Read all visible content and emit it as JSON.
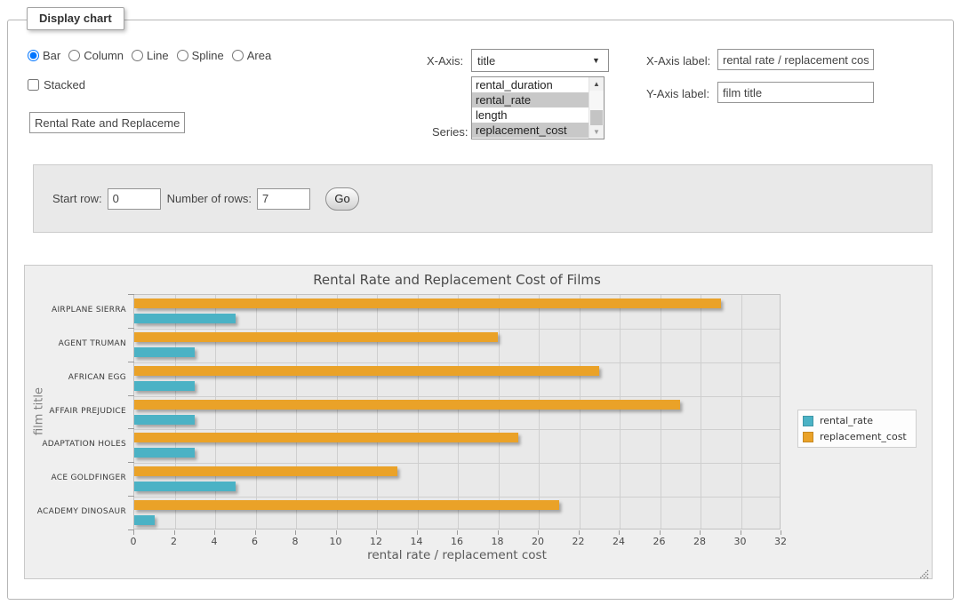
{
  "panel": {
    "legend_title": "Display chart"
  },
  "controls": {
    "chart_types": [
      {
        "label": "Bar",
        "checked": true
      },
      {
        "label": "Column",
        "checked": false
      },
      {
        "label": "Line",
        "checked": false
      },
      {
        "label": "Spline",
        "checked": false
      },
      {
        "label": "Area",
        "checked": false
      }
    ],
    "stacked": {
      "label": "Stacked",
      "checked": false
    },
    "chart_title_input": {
      "value": "Rental Rate and Replacemer"
    },
    "x_axis": {
      "label": "X-Axis:",
      "selected": "title"
    },
    "series_picker": {
      "label": "Series:",
      "options": [
        {
          "label": "rental_duration",
          "selected": false
        },
        {
          "label": "rental_rate",
          "selected": true
        },
        {
          "label": "length",
          "selected": false
        },
        {
          "label": "replacement_cost",
          "selected": true
        }
      ]
    },
    "x_axis_label_field": {
      "label": "X-Axis label:",
      "value": "rental rate / replacement cost"
    },
    "y_axis_label_field": {
      "label": "Y-Axis label:",
      "value": "film title"
    }
  },
  "pagination": {
    "start_row_label": "Start row:",
    "start_row_value": "0",
    "num_rows_label": "Number of rows:",
    "num_rows_value": "7",
    "go_label": "Go"
  },
  "chart_data": {
    "type": "bar",
    "orientation": "horizontal",
    "title": "Rental Rate and Replacement Cost of Films",
    "xlabel": "rental rate / replacement cost",
    "ylabel": "film title",
    "categories": [
      "AIRPLANE SIERRA",
      "AGENT TRUMAN",
      "AFRICAN EGG",
      "AFFAIR PREJUDICE",
      "ADAPTATION HOLES",
      "ACE GOLDFINGER",
      "ACADEMY DINOSAUR"
    ],
    "series": [
      {
        "name": "rental_rate",
        "color": "#4bb2c5",
        "values": [
          4.99,
          2.99,
          2.99,
          2.99,
          2.99,
          4.99,
          0.99
        ]
      },
      {
        "name": "replacement_cost",
        "color": "#eaa228",
        "values": [
          28.99,
          17.99,
          22.99,
          26.99,
          18.99,
          12.99,
          20.99
        ]
      }
    ],
    "xlim": [
      0,
      32
    ],
    "xticks": [
      0,
      2,
      4,
      6,
      8,
      10,
      12,
      14,
      16,
      18,
      20,
      22,
      24,
      26,
      28,
      30,
      32
    ],
    "grid": true,
    "legend_position": "right"
  }
}
